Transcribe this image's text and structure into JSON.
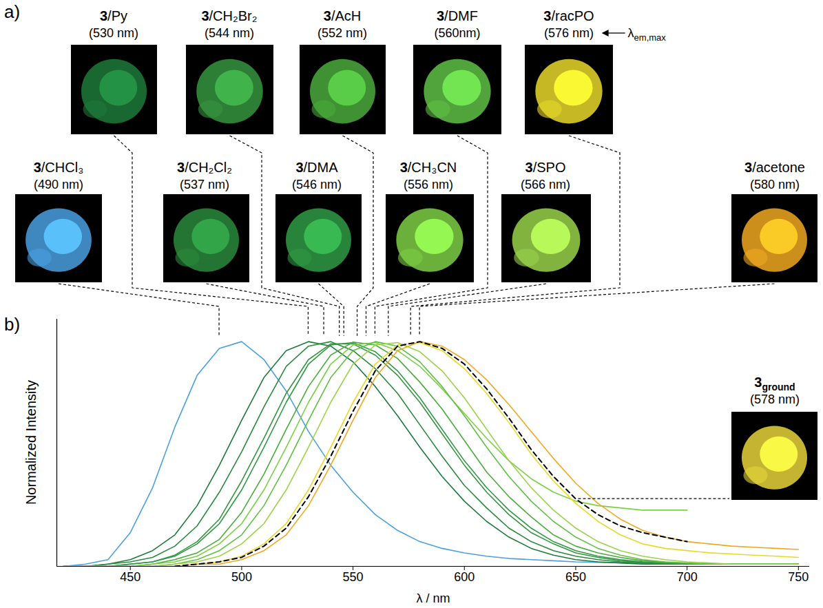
{
  "chart_data": {
    "type": "line",
    "x_label": "λ / nm",
    "y_label": "Normalized Intensity",
    "panel_labels": [
      "a)",
      "b)"
    ],
    "annotations": [
      {
        "text": "λ",
        "subscript": "em,max",
        "target": "3/racPO"
      }
    ],
    "xlim": [
      417,
      755
    ],
    "xticks": [
      450,
      500,
      550,
      600,
      650,
      700,
      750
    ],
    "ylim": [
      0,
      1.1
    ],
    "tick_labels": "x",
    "grid": false,
    "x": [
      420,
      430,
      440,
      450,
      460,
      470,
      480,
      490,
      500,
      510,
      520,
      530,
      540,
      550,
      560,
      570,
      580,
      590,
      600,
      610,
      620,
      630,
      640,
      650,
      660,
      670,
      680,
      690,
      700,
      710,
      720,
      730,
      740,
      750
    ],
    "series": [
      {
        "name": "3/CHCl₃",
        "lambda_label": "(490 nm)",
        "lambda_em_max": 490,
        "color": "#4aa0e0",
        "line_style": "solid",
        "values": [
          0,
          0.01,
          0.03,
          0.15,
          0.35,
          0.62,
          0.85,
          0.97,
          1.0,
          0.92,
          0.78,
          0.6,
          0.45,
          0.33,
          0.23,
          0.16,
          0.11,
          0.08,
          0.06,
          0.045,
          0.035,
          0.03,
          0.025,
          0.02,
          0.018,
          0.016,
          0.014,
          0.012,
          0.01,
          0.01,
          0.01,
          0.01,
          0.01,
          0.01
        ]
      },
      {
        "name": "3/Py",
        "lambda_label": "(530 nm)",
        "lambda_em_max": 530,
        "color": "#1e7a3a",
        "line_style": "solid",
        "values": [
          0,
          0,
          0.01,
          0.03,
          0.07,
          0.14,
          0.27,
          0.45,
          0.65,
          0.84,
          0.96,
          1.0,
          0.98,
          0.91,
          0.8,
          0.67,
          0.53,
          0.4,
          0.29,
          0.2,
          0.13,
          0.08,
          0.05,
          0.03,
          0.02,
          0.015,
          0.01,
          0.01,
          0.01,
          0.01,
          0.01,
          0.01,
          0.01,
          0.01
        ]
      },
      {
        "name": "3/CH₂Cl₂",
        "lambda_label": "(537 nm)",
        "lambda_em_max": 537,
        "color": "#2a8a3c",
        "line_style": "solid",
        "values": [
          0,
          0,
          0.01,
          0.02,
          0.04,
          0.09,
          0.18,
          0.33,
          0.51,
          0.71,
          0.89,
          0.98,
          1.0,
          0.96,
          0.88,
          0.77,
          0.63,
          0.49,
          0.36,
          0.26,
          0.17,
          0.11,
          0.07,
          0.045,
          0.03,
          0.02,
          0.015,
          0.01,
          0.01,
          0.01,
          0.01,
          0.01,
          0.01,
          0.01
        ]
      },
      {
        "name": "3/CH₂Br₂",
        "lambda_label": "(544 nm)",
        "lambda_em_max": 544,
        "color": "#35953f",
        "line_style": "solid",
        "values": [
          0,
          0,
          0,
          0.01,
          0.02,
          0.05,
          0.11,
          0.21,
          0.38,
          0.57,
          0.77,
          0.92,
          0.99,
          0.99,
          0.94,
          0.85,
          0.73,
          0.59,
          0.45,
          0.33,
          0.23,
          0.15,
          0.1,
          0.06,
          0.04,
          0.025,
          0.018,
          0.013,
          0.01,
          0.01,
          0.01,
          0.01,
          0.01,
          0.01
        ]
      },
      {
        "name": "3/DMA",
        "lambda_label": "(546 nm)",
        "lambda_em_max": 546,
        "color": "#2f9a45",
        "line_style": "solid",
        "values": [
          0,
          0,
          0,
          0.01,
          0.02,
          0.045,
          0.1,
          0.19,
          0.34,
          0.53,
          0.73,
          0.9,
          0.985,
          0.996,
          0.955,
          0.87,
          0.75,
          0.61,
          0.47,
          0.35,
          0.25,
          0.17,
          0.11,
          0.07,
          0.045,
          0.03,
          0.02,
          0.015,
          0.01,
          0.01,
          0.01,
          0.01,
          0.01,
          0.01
        ]
      },
      {
        "name": "3/AcH",
        "lambda_label": "(552 nm)",
        "lambda_em_max": 552,
        "color": "#4aaa3c",
        "line_style": "solid",
        "values": [
          0,
          0,
          0,
          0,
          0.01,
          0.03,
          0.06,
          0.12,
          0.24,
          0.41,
          0.61,
          0.8,
          0.94,
          0.998,
          0.985,
          0.925,
          0.82,
          0.7,
          0.56,
          0.42,
          0.31,
          0.22,
          0.14,
          0.09,
          0.06,
          0.04,
          0.025,
          0.018,
          0.013,
          0.01,
          0.01,
          0.01,
          0.01,
          0.01
        ]
      },
      {
        "name": "3/CH₃CN",
        "lambda_label": "(556 nm)",
        "lambda_em_max": 556,
        "color": "#7ccf45",
        "line_style": "solid",
        "values": [
          0,
          0,
          0,
          0,
          0.01,
          0.02,
          0.045,
          0.1,
          0.19,
          0.34,
          0.53,
          0.73,
          0.9,
          0.985,
          0.996,
          0.96,
          0.89,
          0.79,
          0.68,
          0.57,
          0.47,
          0.39,
          0.33,
          0.29,
          0.27,
          0.26,
          0.25,
          0.25,
          0.25,
          null,
          null,
          null,
          null,
          null
        ]
      },
      {
        "name": "3/DMF",
        "lambda_label": "(560nm)",
        "lambda_em_max": 560,
        "color": "#5fbf45",
        "line_style": "solid",
        "values": [
          0,
          0,
          0,
          0,
          0,
          0.01,
          0.03,
          0.07,
          0.14,
          0.27,
          0.45,
          0.65,
          0.84,
          0.96,
          1.0,
          0.98,
          0.91,
          0.8,
          0.67,
          0.53,
          0.4,
          0.29,
          0.2,
          0.13,
          0.08,
          0.05,
          0.03,
          0.02,
          0.015,
          0.01,
          0.01,
          0.01,
          0.01,
          0.01
        ]
      },
      {
        "name": "3/SPO",
        "lambda_label": "(566 nm)",
        "lambda_em_max": 566,
        "color": "#9ad24a",
        "line_style": "solid",
        "values": [
          0,
          0,
          0,
          0,
          0,
          0.01,
          0.02,
          0.045,
          0.1,
          0.19,
          0.34,
          0.53,
          0.73,
          0.9,
          0.985,
          0.996,
          0.955,
          0.87,
          0.75,
          0.61,
          0.47,
          0.35,
          0.25,
          0.17,
          0.11,
          0.07,
          0.045,
          0.03,
          0.02,
          0.015,
          0.01,
          0.01,
          0.01,
          0.01
        ]
      },
      {
        "name": "3/racPO",
        "lambda_label": "(576 nm)",
        "lambda_em_max": 576,
        "color": "#e8d82a",
        "line_style": "solid",
        "values": [
          0,
          0,
          0,
          0,
          0,
          0,
          0.01,
          0.02,
          0.045,
          0.1,
          0.19,
          0.34,
          0.53,
          0.73,
          0.9,
          0.985,
          0.996,
          0.96,
          0.88,
          0.77,
          0.64,
          0.5,
          0.38,
          0.28,
          0.2,
          0.14,
          0.1,
          0.08,
          0.07,
          0.06,
          0.055,
          0.05,
          0.045,
          0.04
        ]
      },
      {
        "name": "3/acetone",
        "lambda_label": "(580 nm)",
        "lambda_em_max": 580,
        "color": "#f0a820",
        "line_style": "solid",
        "values": [
          0,
          0,
          0,
          0,
          0,
          0,
          0.01,
          0.01,
          0.03,
          0.07,
          0.14,
          0.27,
          0.45,
          0.65,
          0.84,
          0.96,
          1.0,
          0.98,
          0.92,
          0.83,
          0.72,
          0.6,
          0.48,
          0.37,
          0.28,
          0.21,
          0.16,
          0.13,
          0.11,
          0.1,
          0.09,
          0.085,
          0.08,
          0.075
        ]
      },
      {
        "name": "3",
        "subscript": "ground",
        "lambda_label": "(578 nm)",
        "lambda_em_max": 578,
        "color": "#000000",
        "line_style": "dashed",
        "values": [
          null,
          null,
          null,
          null,
          null,
          0,
          0.01,
          0.02,
          0.04,
          0.09,
          0.17,
          0.31,
          0.49,
          0.69,
          0.87,
          0.98,
          1.0,
          0.97,
          0.9,
          0.79,
          0.66,
          0.52,
          0.4,
          0.3,
          0.23,
          0.18,
          0.15,
          0.13,
          0.11,
          null,
          null,
          null,
          null,
          null
        ]
      }
    ]
  }
}
